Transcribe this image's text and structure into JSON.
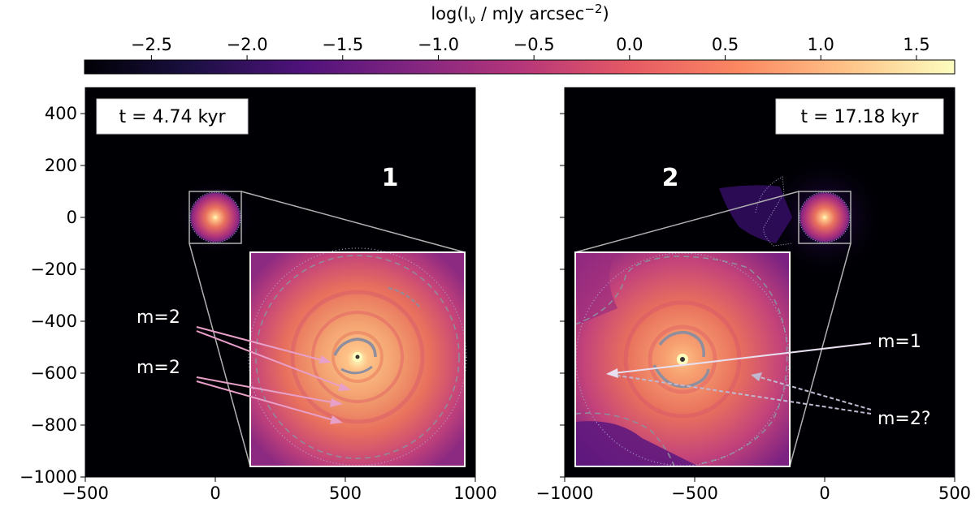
{
  "chart_data": {
    "type": "heatmap",
    "colorbar": {
      "title": "log(I_ν / mJy arcsec⁻²)",
      "title_base": "log(I",
      "title_sub": "ν",
      "title_mid": " / mJy arcsec",
      "title_sup": "−2",
      "title_end": ")",
      "range": [
        -2.85,
        1.7
      ],
      "ticks": [
        -2.5,
        -2.0,
        -1.5,
        -1.0,
        -0.5,
        0.0,
        0.5,
        1.0,
        1.5
      ],
      "tick_labels": [
        "−2.5",
        "−2.0",
        "−1.5",
        "−1.0",
        "−0.5",
        "0.0",
        "0.5",
        "1.0",
        "1.5"
      ],
      "colormap": "magma",
      "colors": [
        "#000004",
        "#1c1044",
        "#4f127b",
        "#812581",
        "#b5367a",
        "#e55964",
        "#fb8761",
        "#fec287",
        "#fcfdbf"
      ]
    },
    "panels": [
      {
        "id": "1",
        "time_label": "t = 4.74 kyr",
        "xlim": [
          -500,
          1000
        ],
        "ylim": [
          -1000,
          500
        ],
        "x_ticks": [
          -500,
          0,
          500,
          1000
        ],
        "x_tick_labels": [
          "−500",
          "0",
          "500",
          "1000"
        ],
        "y_ticks": [
          400,
          200,
          0,
          -200,
          -400,
          -600,
          -800,
          -1000
        ],
        "y_tick_labels": [
          "400",
          "200",
          "0",
          "−200",
          "−400",
          "−600",
          "−800",
          "−1000"
        ],
        "disk_center": [
          0,
          0
        ],
        "zoom_box": [
          -100,
          100,
          -100,
          100
        ],
        "inset_extent": [
          130,
          960,
          -960,
          -130
        ],
        "annotations": [
          {
            "label": "m=2",
            "text_xy": [
              -200,
              -380
            ],
            "arrows_to": [
              [
                440,
                -575
              ],
              [
                520,
                -660
              ]
            ]
          },
          {
            "label": "m=2",
            "text_xy": [
              -200,
              -580
            ],
            "arrows_to": [
              [
                490,
                -725
              ],
              [
                490,
                -795
              ]
            ]
          }
        ]
      },
      {
        "id": "2",
        "time_label": "t = 17.18 kyr",
        "xlim": [
          -1000,
          500
        ],
        "ylim": [
          -1000,
          500
        ],
        "x_ticks": [
          -1000,
          -500,
          0,
          500
        ],
        "x_tick_labels": [
          "−1000",
          "−500",
          "0",
          "500"
        ],
        "y_ticks": [
          400,
          200,
          0,
          -200,
          -400,
          -600,
          -800,
          -1000
        ],
        "y_tick_labels": [
          "",
          "",
          "",
          "",
          "",
          "",
          "",
          ""
        ],
        "disk_center": [
          0,
          0
        ],
        "zoom_box": [
          -100,
          100,
          -100,
          100
        ],
        "inset_extent": [
          -960,
          -130,
          -960,
          -130
        ],
        "annotations": [
          {
            "label": "m=1",
            "text_xy": [
              200,
              -480
            ],
            "arrows_to": [
              [
                -840,
                -600
              ]
            ]
          },
          {
            "label": "m=2?",
            "text_xy": [
              200,
              -760
            ],
            "arrows_to": [
              [
                -820,
                -610
              ],
              [
                -280,
                -610
              ]
            ]
          }
        ]
      }
    ]
  }
}
